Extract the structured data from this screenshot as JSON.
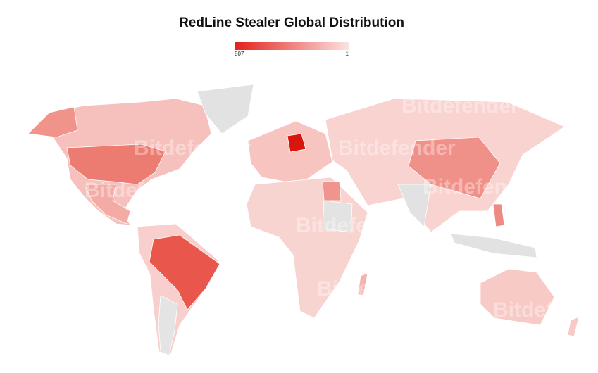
{
  "chart_data": {
    "type": "choropleth",
    "title": "RedLine Stealer Global Distribution",
    "legend": {
      "max": 807,
      "min": 1,
      "colors": [
        "#e4211a",
        "#fbe2e2"
      ]
    },
    "watermark": "Bitdefender"
  }
}
